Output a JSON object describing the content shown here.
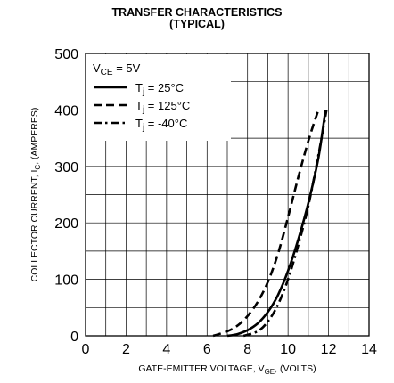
{
  "chart_data": {
    "type": "line",
    "title_line1": "TRANSFER CHARACTERISTICS",
    "title_line2": "(TYPICAL)",
    "xlabel": {
      "prefix": "GATE-EMITTER VOLTAGE, V",
      "sub": "GE",
      "suffix": ", (VOLTS)"
    },
    "ylabel": {
      "prefix": "COLLECTOR CURRENT, I",
      "sub": "C",
      "suffix": ", (AMPERES)"
    },
    "xlim": [
      0,
      14
    ],
    "ylim": [
      0,
      500
    ],
    "xticks": [
      0,
      2,
      4,
      6,
      8,
      10,
      12,
      14
    ],
    "yticks": [
      0,
      100,
      200,
      300,
      400,
      500
    ],
    "x_minor_step": 1,
    "y_minor_step": 50,
    "grid": true,
    "legend_position": "top-left",
    "legend_header": {
      "prefix": "V",
      "sub": "CE",
      "suffix": " = 5V"
    },
    "series": [
      {
        "name_prefix": "T",
        "name_sub": "j",
        "name_suffix": " = 25°C",
        "dash": "solid",
        "x": [
          7.0,
          7.5,
          8.0,
          8.5,
          9.0,
          9.5,
          10.0,
          10.5,
          11.0,
          11.5,
          11.85
        ],
        "values": [
          0,
          3,
          10,
          22,
          42,
          72,
          115,
          170,
          235,
          315,
          400
        ]
      },
      {
        "name_prefix": "T",
        "name_sub": "j",
        "name_suffix": " = 125°C",
        "dash": "dashed",
        "x": [
          6.3,
          7.0,
          7.5,
          8.0,
          8.5,
          9.0,
          9.5,
          10.0,
          10.5,
          11.0,
          11.5
        ],
        "values": [
          0,
          8,
          18,
          35,
          60,
          95,
          145,
          210,
          280,
          345,
          400
        ]
      },
      {
        "name_prefix": "T",
        "name_sub": "j",
        "name_suffix": " = -40°C",
        "dash": "dashdot",
        "x": [
          7.8,
          8.5,
          9.0,
          9.5,
          10.0,
          10.5,
          11.0,
          11.5,
          11.9
        ],
        "values": [
          0,
          8,
          25,
          55,
          100,
          160,
          230,
          320,
          400
        ]
      }
    ]
  }
}
